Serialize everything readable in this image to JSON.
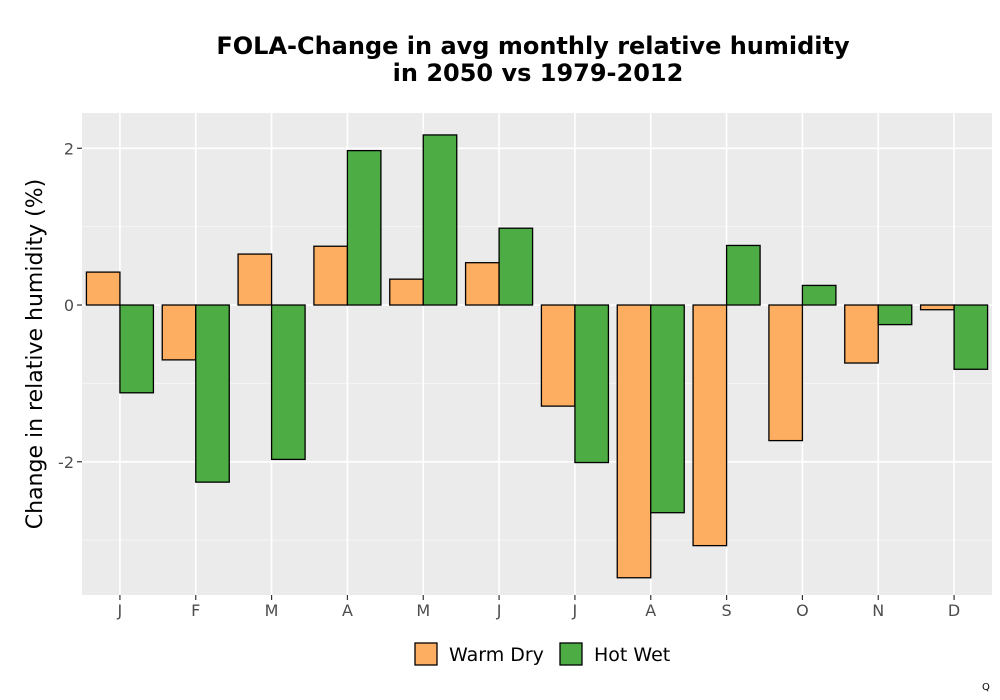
{
  "chart_data": {
    "type": "bar",
    "title_lines": [
      "FOLA-Change in avg monthly relative humidity",
      "in 2050 vs 1979-2012"
    ],
    "xlabel": "",
    "ylabel": "Change in relative humidity (%)",
    "categories": [
      "J",
      "F",
      "M",
      "A",
      "M",
      "J",
      "J",
      "A",
      "S",
      "O",
      "N",
      "D"
    ],
    "series": [
      {
        "name": "Warm Dry",
        "color": "#FDAE61",
        "values": [
          0.42,
          -0.7,
          0.65,
          0.75,
          0.33,
          0.54,
          -1.29,
          -3.48,
          -3.07,
          -1.73,
          -0.74,
          -0.06
        ]
      },
      {
        "name": "Hot Wet",
        "color": "#4DAC44",
        "values": [
          -1.12,
          -2.26,
          -1.97,
          1.97,
          2.17,
          0.98,
          -2.01,
          -2.65,
          0.76,
          0.25,
          -0.25,
          -0.82
        ]
      }
    ],
    "ylim": [
      -3.7,
      2.45
    ],
    "yticks": [
      -2,
      0,
      2
    ],
    "grid": true,
    "legend_position": "bottom"
  },
  "corner_mark": "Q"
}
